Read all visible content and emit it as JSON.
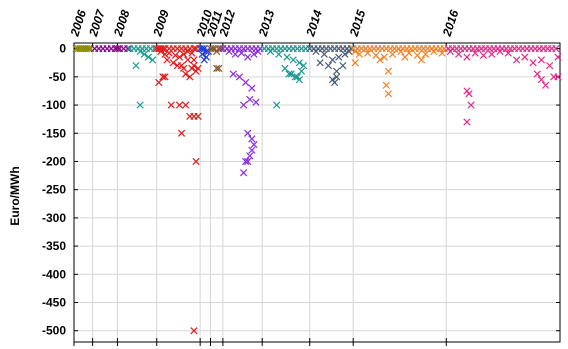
{
  "chart_data": {
    "type": "scatter",
    "title": "",
    "xlabel": "",
    "ylabel": "Euro/MWh",
    "ylim": [
      -520,
      10
    ],
    "xlim": [
      2006.0,
      2017.75
    ],
    "y_ticks": [
      0,
      -50,
      -100,
      -150,
      -200,
      -250,
      -300,
      -350,
      -400,
      -450,
      -500
    ],
    "x_ticks": [
      {
        "label": "2006",
        "x": 2006.0
      },
      {
        "label": "2007",
        "x": 2006.45
      },
      {
        "label": "2008",
        "x": 2007.05
      },
      {
        "label": "2009",
        "x": 2008.0
      },
      {
        "label": "2010",
        "x": 2009.05
      },
      {
        "label": "2011",
        "x": 2009.3
      },
      {
        "label": "2012",
        "x": 2009.6
      },
      {
        "label": "2013",
        "x": 2010.55
      },
      {
        "label": "2014",
        "x": 2011.7
      },
      {
        "label": "2015",
        "x": 2012.75
      },
      {
        "label": "2016",
        "x": 2015.0
      }
    ],
    "grid": true,
    "marker": "x",
    "series": [
      {
        "color": "#8a8a00",
        "x": [
          2006.05,
          2006.1,
          2006.15,
          2006.2,
          2006.25,
          2006.3,
          2006.35,
          2006.4
        ],
        "y": [
          0,
          0,
          0,
          0,
          0,
          0,
          0,
          0
        ]
      },
      {
        "color": "#8b008b",
        "x": [
          2006.5,
          2006.6,
          2006.7,
          2006.8,
          2006.9,
          2007.0,
          2007.05,
          2007.1,
          2007.2,
          2007.3
        ],
        "y": [
          0,
          0,
          0,
          0,
          0,
          0,
          0,
          0,
          0,
          0
        ]
      },
      {
        "color": "#1b9e8f",
        "x": [
          2007.35,
          2007.45,
          2007.55,
          2007.65,
          2007.75,
          2007.85,
          2007.95,
          2007.6,
          2007.7,
          2007.8,
          2007.9,
          2007.5,
          2007.6
        ],
        "y": [
          0,
          0,
          0,
          0,
          0,
          0,
          0,
          -5,
          -10,
          -15,
          -20,
          -30,
          -100
        ]
      },
      {
        "color": "#e41a1c",
        "x": [
          2008.0,
          2008.05,
          2008.1,
          2008.15,
          2008.2,
          2008.3,
          2008.4,
          2008.5,
          2008.6,
          2008.7,
          2008.8,
          2008.9,
          2008.95,
          2008.1,
          2008.2,
          2008.3,
          2008.45,
          2008.55,
          2008.65,
          2008.75,
          2008.85,
          2008.25,
          2008.4,
          2008.6,
          2008.85,
          2008.9,
          2008.95,
          2009.0,
          2008.7,
          2008.8,
          2008.5,
          2008.75,
          2008.9,
          2008.65,
          2008.05,
          2008.15,
          2008.2,
          2008.35,
          2008.55,
          2008.7,
          2008.8,
          2008.9,
          2008.6,
          2009.0,
          2008.95,
          2008.9
        ],
        "y": [
          0,
          0,
          0,
          0,
          0,
          0,
          0,
          0,
          0,
          0,
          0,
          0,
          0,
          -5,
          -10,
          -8,
          -12,
          -15,
          -10,
          -5,
          -8,
          -20,
          -25,
          -30,
          -35,
          -30,
          -40,
          -35,
          -45,
          -50,
          -30,
          -20,
          -20,
          -35,
          -60,
          -50,
          -50,
          -100,
          -100,
          -100,
          -120,
          -120,
          -150,
          -120,
          -200,
          -500
        ]
      },
      {
        "color": "#1f3fd6",
        "x": [
          2009.05,
          2009.1,
          2009.15,
          2009.2,
          2009.25,
          2009.1,
          2009.2,
          2009.15
        ],
        "y": [
          0,
          0,
          0,
          -5,
          -5,
          -10,
          -15,
          -20
        ]
      },
      {
        "color": "#8b5a2b",
        "x": [
          2009.3,
          2009.35,
          2009.4,
          2009.45,
          2009.5,
          2009.55,
          2009.45,
          2009.5
        ],
        "y": [
          0,
          0,
          0,
          -5,
          0,
          0,
          -35,
          -35
        ]
      },
      {
        "color": "#8a2be2",
        "x": [
          2009.6,
          2009.7,
          2009.8,
          2009.9,
          2010.0,
          2010.1,
          2010.2,
          2010.3,
          2010.4,
          2010.5,
          2009.75,
          2009.9,
          2010.05,
          2010.2,
          2010.35,
          2010.45,
          2009.85,
          2010.0,
          2010.15,
          2010.3,
          2010.1,
          2010.25,
          2010.4,
          2010.2,
          2010.3,
          2010.35,
          2010.3,
          2010.25,
          2010.15,
          2010.2,
          2010.1
        ],
        "y": [
          0,
          0,
          0,
          0,
          0,
          0,
          0,
          0,
          0,
          0,
          -5,
          -10,
          -8,
          -15,
          -10,
          -5,
          -45,
          -50,
          -60,
          -70,
          -100,
          -90,
          -95,
          -150,
          -160,
          -170,
          -180,
          -190,
          -200,
          -200,
          -220
        ]
      },
      {
        "color": "#1a9990",
        "x": [
          2010.6,
          2010.7,
          2010.8,
          2010.9,
          2011.0,
          2011.1,
          2011.2,
          2011.3,
          2011.4,
          2011.5,
          2011.6,
          2010.75,
          2010.95,
          2011.15,
          2011.3,
          2011.45,
          2011.55,
          2011.1,
          2011.25,
          2011.4,
          2011.5,
          2011.2,
          2011.35,
          2011.45,
          2010.9
        ],
        "y": [
          0,
          0,
          0,
          0,
          0,
          0,
          0,
          0,
          0,
          0,
          0,
          -5,
          -10,
          -15,
          -20,
          -25,
          -30,
          -35,
          -45,
          -50,
          -40,
          -45,
          -50,
          -55,
          -100
        ]
      },
      {
        "color": "#4a5d78",
        "x": [
          2011.7,
          2011.8,
          2011.9,
          2012.0,
          2012.1,
          2012.2,
          2012.3,
          2012.4,
          2012.5,
          2012.6,
          2012.7,
          2011.85,
          2012.05,
          2012.25,
          2012.4,
          2012.55,
          2012.65,
          2011.95,
          2012.15,
          2012.35,
          2012.5,
          2012.25,
          2012.3,
          2012.35
        ],
        "y": [
          0,
          0,
          0,
          0,
          0,
          0,
          0,
          0,
          0,
          0,
          0,
          -5,
          -10,
          -20,
          -15,
          -10,
          -5,
          -25,
          -30,
          -40,
          -30,
          -55,
          -60,
          -50
        ]
      },
      {
        "color": "#f58220",
        "x": [
          2012.75,
          2012.85,
          2012.95,
          2013.05,
          2013.15,
          2013.25,
          2013.35,
          2013.45,
          2013.55,
          2013.65,
          2013.75,
          2013.85,
          2013.95,
          2014.05,
          2014.15,
          2014.25,
          2014.35,
          2014.45,
          2014.55,
          2014.65,
          2014.75,
          2014.85,
          2014.95,
          2012.8,
          2012.9,
          2013.1,
          2013.3,
          2013.5,
          2013.7,
          2013.9,
          2014.1,
          2014.3,
          2014.5,
          2014.7,
          2014.9,
          2012.8,
          2013.4,
          2013.6,
          2013.55,
          2013.6,
          2014.0,
          2014.4
        ],
        "y": [
          0,
          0,
          0,
          0,
          0,
          0,
          0,
          0,
          0,
          0,
          0,
          0,
          0,
          0,
          0,
          0,
          0,
          0,
          0,
          0,
          0,
          0,
          0,
          -5,
          -10,
          -8,
          -12,
          -15,
          -10,
          -5,
          -8,
          -12,
          -10,
          -5,
          -8,
          -25,
          -20,
          -40,
          -65,
          -80,
          -15,
          -20
        ]
      },
      {
        "color": "#e7298a",
        "x": [
          2015.05,
          2015.15,
          2015.25,
          2015.35,
          2015.45,
          2015.55,
          2015.65,
          2015.75,
          2015.85,
          2015.95,
          2016.05,
          2016.15,
          2016.25,
          2016.35,
          2016.45,
          2016.55,
          2016.65,
          2016.75,
          2016.85,
          2016.95,
          2017.05,
          2017.15,
          2017.25,
          2017.35,
          2017.45,
          2017.55,
          2017.65,
          2015.1,
          2015.3,
          2015.5,
          2015.7,
          2015.9,
          2016.1,
          2016.3,
          2016.5,
          2016.7,
          2016.9,
          2017.1,
          2017.3,
          2017.5,
          2017.7,
          2015.5,
          2015.55,
          2015.6,
          2015.5,
          2017.3,
          2017.4,
          2017.6,
          2017.7,
          2017.2
        ],
        "y": [
          0,
          0,
          0,
          0,
          0,
          0,
          0,
          0,
          0,
          0,
          0,
          0,
          0,
          0,
          0,
          0,
          0,
          0,
          0,
          0,
          0,
          0,
          0,
          0,
          0,
          0,
          0,
          -5,
          -10,
          -15,
          -8,
          -12,
          -10,
          -5,
          -8,
          -20,
          -15,
          -25,
          -20,
          -30,
          -15,
          -75,
          -80,
          -100,
          -130,
          -55,
          -65,
          -50,
          -50,
          -45
        ]
      }
    ]
  }
}
